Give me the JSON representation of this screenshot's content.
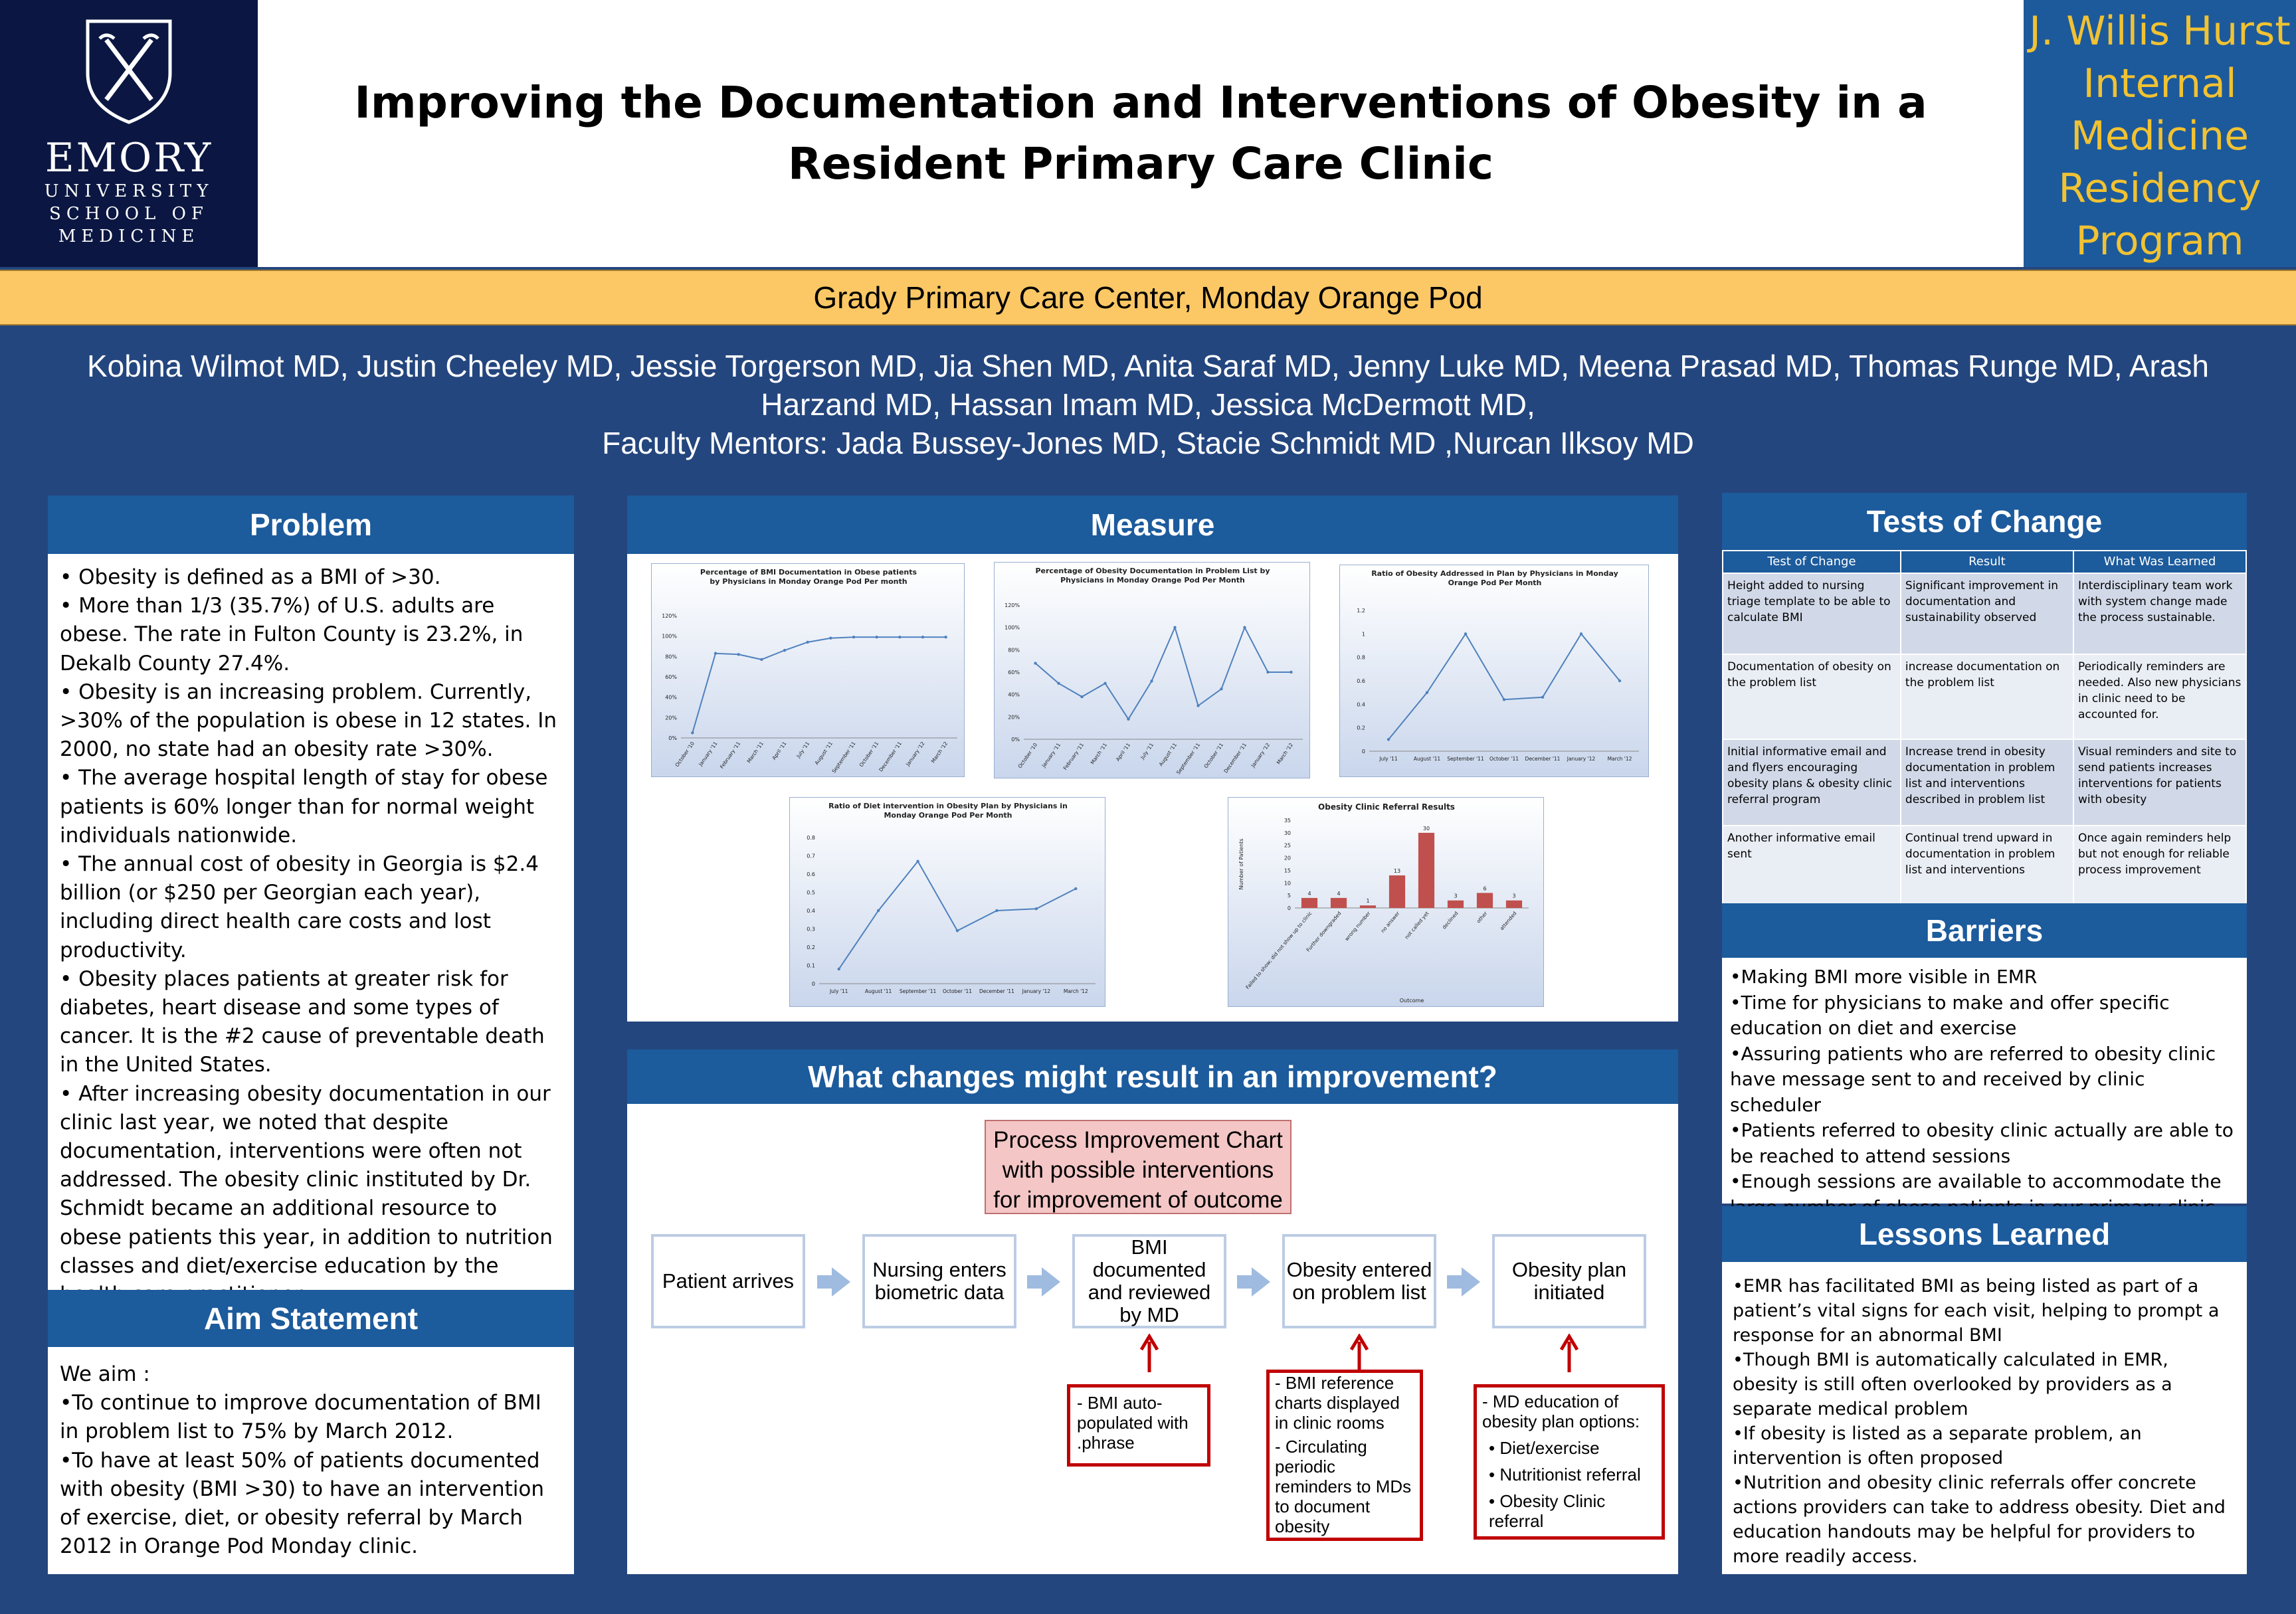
{
  "header": {
    "logo": {
      "line1": "EMORY",
      "line2": "UNIVERSITY",
      "line3": "SCHOOL OF",
      "line4": "MEDICINE"
    },
    "title": "Improving the Documentation and Interventions of Obesity in a Resident Primary Care Clinic",
    "program": [
      "J. Willis Hurst",
      "Internal",
      "Medicine",
      "Residency",
      "Program"
    ],
    "subtitle": "Grady Primary Care Center, Monday Orange  Pod",
    "authors_line1": "Kobina Wilmot MD, Justin Cheeley MD, Jessie Torgerson MD, Jia Shen MD, Anita Saraf MD, Jenny Luke MD, Meena Prasad MD, Thomas Runge MD, Arash",
    "authors_line2": "Harzand MD, Hassan Imam MD,  Jessica McDermott MD,",
    "authors_line3": "Faculty Mentors: Jada Bussey-Jones MD, Stacie Schmidt MD ,Nurcan Ilksoy MD"
  },
  "problem": {
    "heading": "Problem",
    "bullets": [
      "• Obesity is defined as a BMI of >30.",
      "• More than 1/3 (35.7%) of U.S. adults are obese. The rate in Fulton County is 23.2%, in Dekalb County 27.4%.",
      "• Obesity is an increasing problem. Currently, >30% of the population is obese in 12 states. In 2000, no state had an obesity rate >30%.",
      "• The average hospital length of stay for obese patients is 60% longer than for normal weight individuals nationwide.",
      "• The annual cost of obesity in Georgia is $2.4 billion (or $250 per Georgian each year), including direct health care costs and lost productivity.",
      "• Obesity places patients at greater risk for diabetes, heart disease and some types of cancer. It is the #2 cause of preventable death in the United States.",
      "• After increasing obesity documentation in our clinic last year, we noted that despite documentation, interventions were often not addressed. The obesity clinic instituted by Dr. Schmidt became an additional resource to obese patients this year, in addition to nutrition classes and diet/exercise education by the health care practitioner."
    ]
  },
  "aim": {
    "heading": "Aim Statement",
    "lines": [
      "We aim :",
      "•To continue to improve documentation of BMI in problem list to 75% by March 2012.",
      "•To have at least  50% of  patients documented with obesity (BMI >30) to have an intervention of exercise, diet, or obesity referral by March 2012 in Orange Pod Monday clinic."
    ]
  },
  "measure": {
    "heading": "Measure"
  },
  "chart_data": [
    {
      "type": "line",
      "title": "Percentage of BMI Documentation in Obese patients by Physicians in Monday Orange Pod Per month",
      "categories": [
        "October '10",
        "January '11",
        "February '11",
        "March '11",
        "April '11",
        "July '11",
        "August '11",
        "September '11",
        "October '11",
        "December '11",
        "January '12",
        "March '12"
      ],
      "values": [
        5,
        83,
        82,
        77,
        86,
        94,
        98,
        99,
        99,
        99,
        99,
        99
      ],
      "ylim": [
        0,
        120
      ],
      "yticks": [
        "0%",
        "20%",
        "40%",
        "60%",
        "80%",
        "100%",
        "120%"
      ],
      "xtick_labels": [
        "October '10",
        "January '11",
        "February '11",
        "March '11",
        "April '11",
        "July '11",
        "August '11",
        "September '11",
        "October '11",
        "December '11",
        "January '12",
        "March '12"
      ]
    },
    {
      "type": "line",
      "title": "Percentage of Obesity Documentation in Problem List by Physicians in Monday Orange Pod Per Month",
      "categories": [
        "October '10",
        "January '11",
        "February '11",
        "March '11",
        "April '11",
        "July '11",
        "August '11",
        "September '11",
        "October '11",
        "December '11",
        "January '12",
        "March '12"
      ],
      "values": [
        68,
        50,
        38,
        50,
        18,
        52,
        100,
        30,
        45,
        100,
        60,
        60
      ],
      "ylim": [
        0,
        120
      ],
      "yticks": [
        "0%",
        "20%",
        "40%",
        "60%",
        "80%",
        "100%",
        "120%"
      ],
      "xtick_labels": [
        "October '10",
        "January '11",
        "February '11",
        "March '11",
        "April '11",
        "July '11",
        "August '11",
        "September '11",
        "October '11",
        "December '11",
        "January '12",
        "March '12"
      ]
    },
    {
      "type": "line",
      "title": "Ratio of Obesity Addressed in Plan by Physicians in Monday Orange Pod Per Month",
      "categories": [
        "July '11",
        "August '11",
        "September '11",
        "October '11",
        "December '11",
        "January '12",
        "March '12"
      ],
      "values": [
        0.1,
        0.5,
        1.0,
        0.44,
        0.46,
        1.0,
        0.6
      ],
      "ylim": [
        0,
        1.2
      ],
      "yticks": [
        "0",
        "0.2",
        "0.4",
        "0.6",
        "0.8",
        "1",
        "1.2"
      ],
      "xtick_labels": [
        "July '11",
        "August '11",
        "September '11",
        "October '11",
        "December '11",
        "January '12",
        "March '12"
      ]
    },
    {
      "type": "line",
      "title": "Ratio of Diet intervention in Obesity Plan by Physicians in Monday Orange Pod Per Month",
      "categories": [
        "July '11",
        "August '11",
        "September '11",
        "October '11",
        "December '11",
        "January '12",
        "March '12"
      ],
      "values": [
        0.08,
        0.4,
        0.67,
        0.29,
        0.4,
        0.41,
        0.52
      ],
      "ylim": [
        0,
        0.8
      ],
      "yticks": [
        "0",
        "0.1",
        "0.2",
        "0.3",
        "0.4",
        "0.5",
        "0.6",
        "0.7",
        "0.8"
      ],
      "xtick_labels": [
        "July '11",
        "August '11",
        "September '11",
        "October '11",
        "December '11",
        "January '12",
        "March '12"
      ]
    },
    {
      "type": "bar",
      "title": "Obesity Clinic Referral Results",
      "categories": [
        "Failed to show; did not show up to clinic",
        "Further downgraded",
        "wrong number",
        "no answer",
        "not called yet",
        "declined",
        "other",
        "attended"
      ],
      "values": [
        4,
        4,
        1,
        13,
        30,
        3,
        6,
        3
      ],
      "ylim": [
        0,
        35
      ],
      "yticks": [
        "0",
        "5",
        "10",
        "15",
        "20",
        "25",
        "30",
        "35"
      ],
      "xlabel": "Outcome",
      "ylabel": "Number of Patients",
      "color": "#c0504d"
    }
  ],
  "changes": {
    "heading": "What changes might result in an improvement?",
    "process_box": "Process Improvement Chart with possible interventions for improvement of outcome",
    "steps": [
      "Patient arrives",
      "Nursing enters biometric data",
      "BMI documented and reviewed by MD",
      "Obesity entered on problem list",
      "Obesity plan initiated"
    ],
    "intervention1": "- BMI auto-populated with .phrase",
    "intervention2_a": "- BMI reference charts displayed in clinic rooms",
    "intervention2_b": "- Circulating periodic reminders to MDs to document obesity",
    "intervention3_title": "- MD education of obesity plan options:",
    "intervention3_items": [
      "• Diet/exercise",
      "• Nutritionist referral",
      "• Obesity Clinic referral"
    ]
  },
  "tests": {
    "heading": "Tests of Change",
    "columns": [
      "Test of Change",
      "Result",
      "What Was Learned"
    ],
    "rows": [
      [
        "Height added to nursing triage template to be able to calculate BMI",
        "Significant improvement  in documentation and sustainability observed",
        "Interdisciplinary team work with system change  made the process sustainable."
      ],
      [
        "Documentation of obesity on the problem list",
        "increase documentation on the problem list",
        "Periodically reminders are needed.  Also new physicians in clinic need to be accounted for."
      ],
      [
        " Initial informative email and and flyers encouraging obesity plans & obesity clinic referral program",
        "Increase  trend in  obesity documentation in problem list and interventions described in problem list",
        "Visual reminders and site to send patients increases interventions for patients with obesity"
      ],
      [
        "Another informative email sent",
        "Continual trend upward in documentation in problem list and interventions",
        "Once again reminders help but not enough for reliable process improvement"
      ]
    ]
  },
  "barriers": {
    "heading": "Barriers",
    "items": [
      "•Making BMI more visible in EMR",
      "•Time for physicians to make and offer specific education on diet and exercise",
      "•Assuring patients who are referred to obesity clinic have message sent to and received by clinic scheduler",
      "•Patients referred to obesity clinic actually are able to be reached to attend  sessions",
      "•Enough sessions are available to accommodate the large number of obese patients in our primary clinic"
    ]
  },
  "lessons": {
    "heading": "Lessons Learned",
    "items": [
      "•EMR has facilitated BMI as being listed as part of a patient’s vital signs for each visit, helping to prompt a response for an abnormal BMI",
      "•Though BMI is automatically calculated in EMR, obesity is still often overlooked by providers as a separate medical problem",
      "•If obesity is listed as a separate problem, an intervention is often proposed",
      "•Nutrition and obesity clinic referrals offer concrete actions providers can take to address obesity. Diet and education handouts may be helpful for providers to more readily access."
    ]
  },
  "colors": {
    "navy": "#0b1742",
    "panel_blue": "#1c5b9c",
    "bg": "#24467e",
    "gold": "#f1c232",
    "line": "#4f81bd",
    "bar": "#c0504d",
    "red_box": "#c00000"
  }
}
